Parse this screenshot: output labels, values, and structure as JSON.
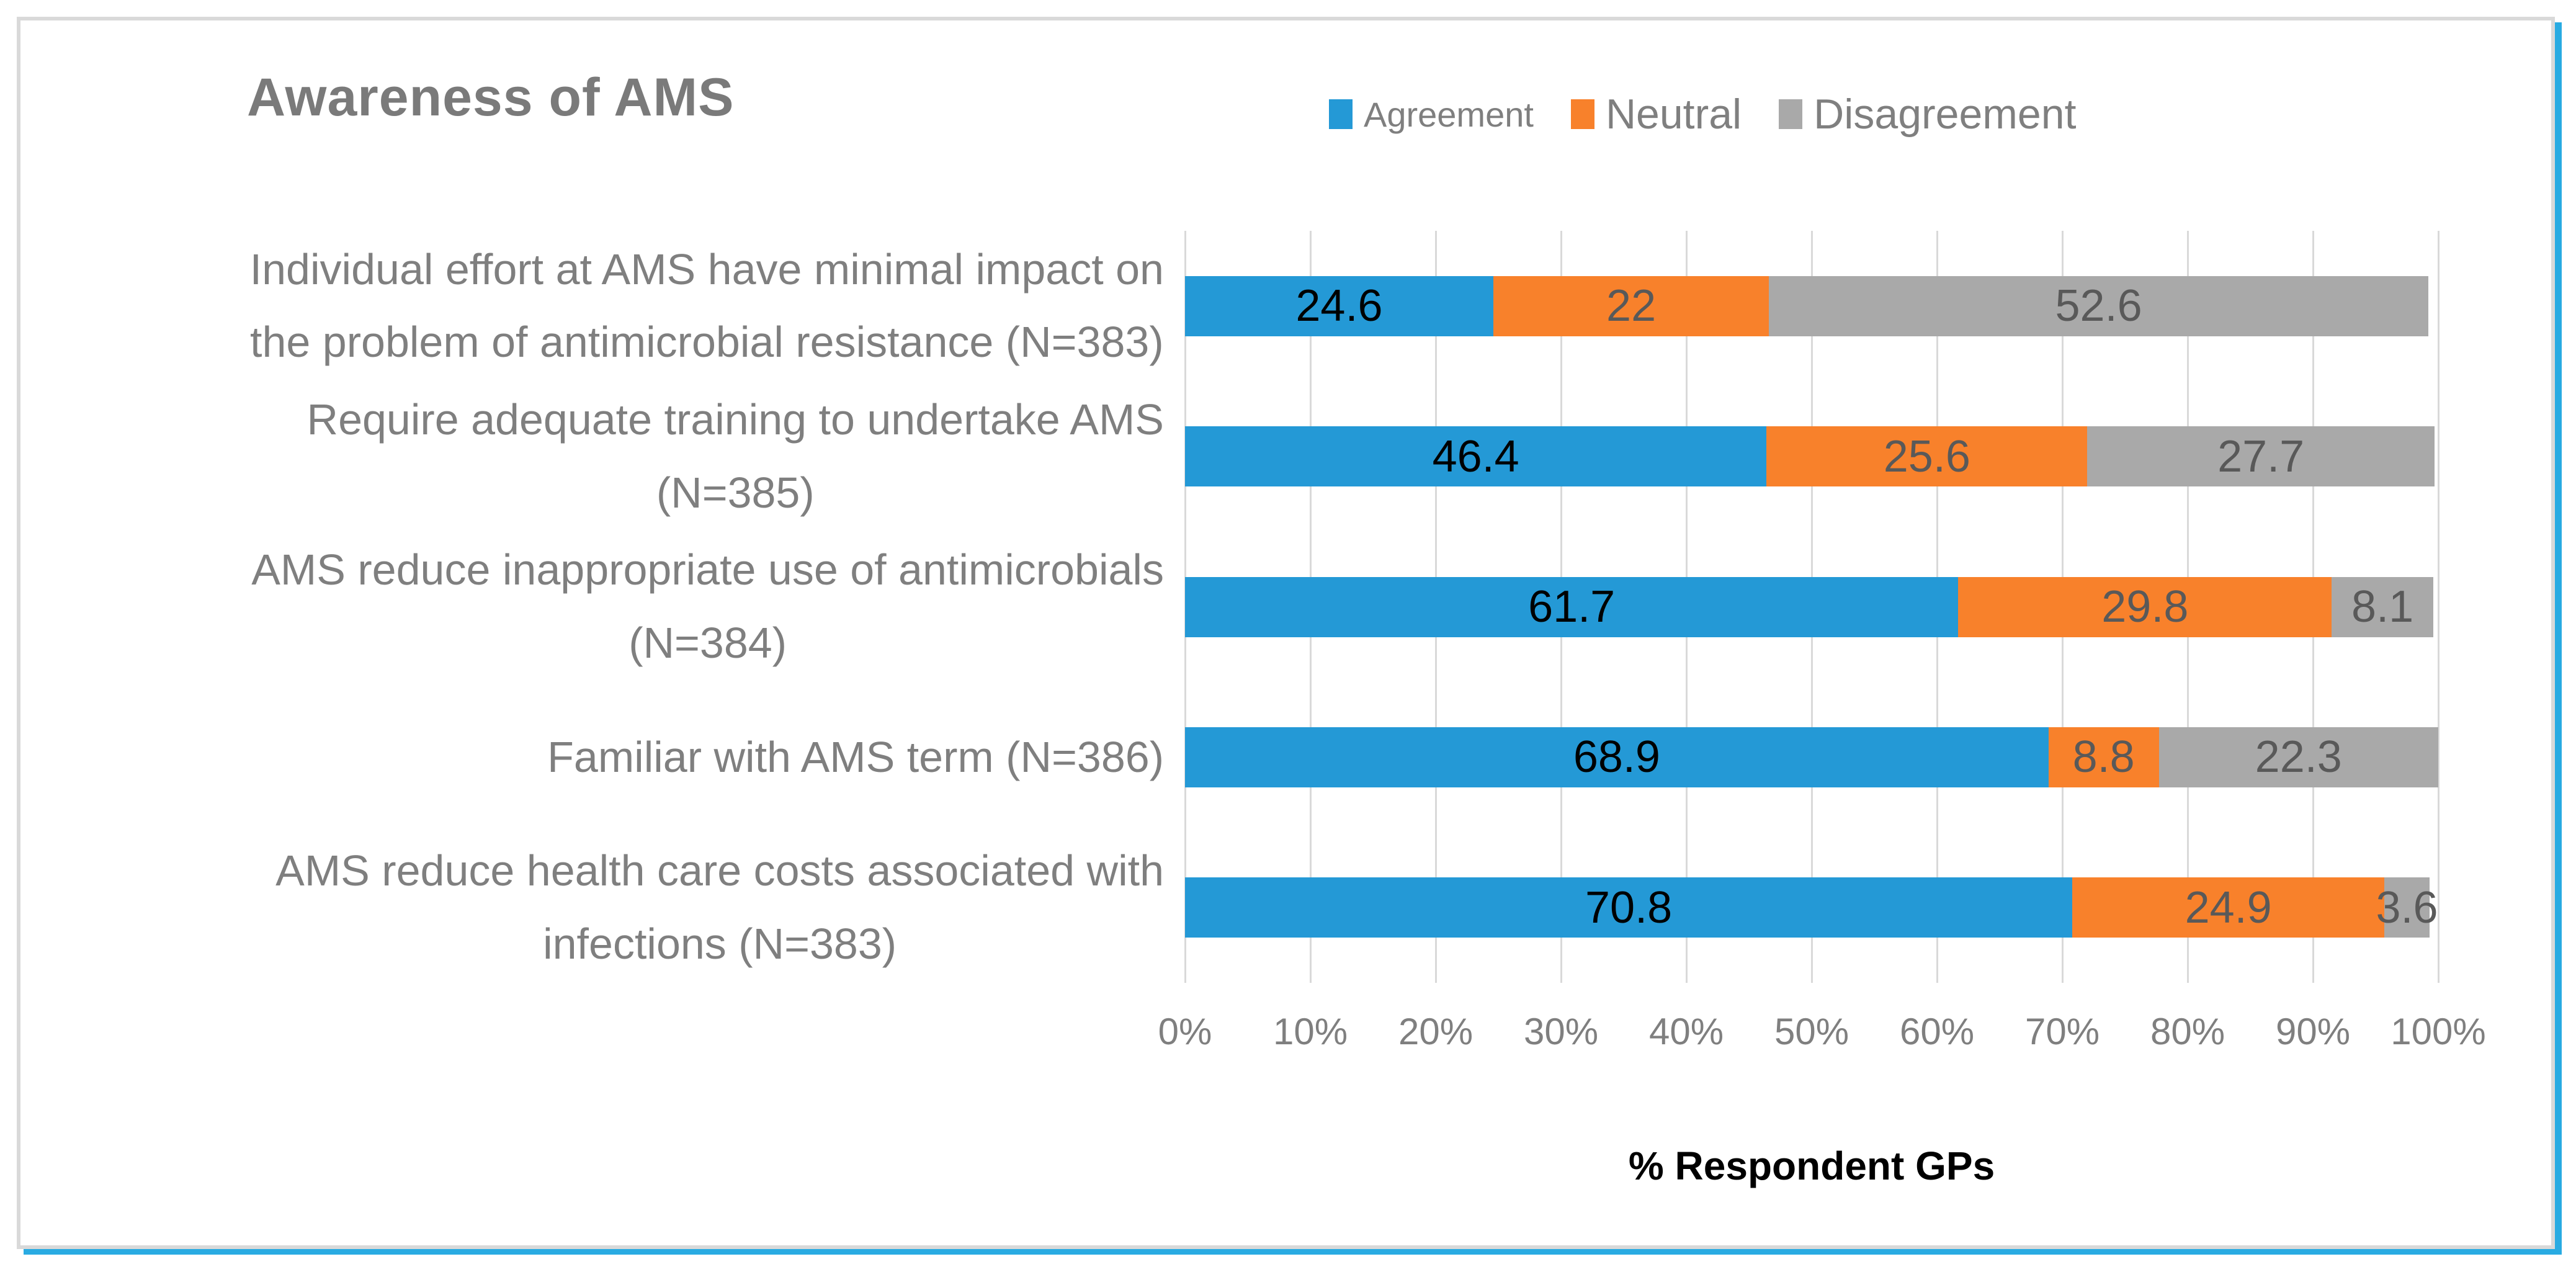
{
  "header": {
    "title": "Awareness of AMS"
  },
  "legend": {
    "items": [
      {
        "label": "Agreement"
      },
      {
        "label": "Neutral"
      },
      {
        "label": "Disagreement"
      }
    ]
  },
  "axis": {
    "x_title": "% Respondent GPs"
  },
  "colors": {
    "agreement": "#2499D6",
    "neutral": "#F8812B",
    "disagreement": "#A9A9A9",
    "frame_border": "#D9D9D9",
    "accent_shadow": "#29ABE2",
    "gridline": "#D9D9D9",
    "category_text": "#7F7F7F",
    "tick_text": "#7F7F7F",
    "title_text": "#7A7A7A",
    "value_label_on_agreement": "#000000",
    "value_label_on_other": "#595959"
  },
  "chart_data": {
    "type": "bar",
    "orientation": "horizontal_stacked",
    "title": "Awareness of AMS",
    "xlabel": "% Respondent GPs",
    "xlim": [
      0,
      100
    ],
    "x_tick_labels": [
      "0%",
      "10%",
      "20%",
      "30%",
      "40%",
      "50%",
      "60%",
      "70%",
      "80%",
      "90%",
      "100%"
    ],
    "grid": true,
    "legend_position": "top-right",
    "categories": [
      {
        "lines": [
          "Individual effort at AMS have minimal impact on",
          "the problem of antimicrobial resistance (N=383)"
        ]
      },
      {
        "lines": [
          "Require adequate training to undertake AMS",
          "(N=385)"
        ]
      },
      {
        "lines": [
          "AMS reduce inappropriate use of antimicrobials",
          "(N=384)"
        ]
      },
      {
        "lines": [
          "Familiar with AMS term (N=386)"
        ]
      },
      {
        "lines": [
          "AMS reduce health care costs associated with",
          "infections (N=383)"
        ]
      }
    ],
    "series": [
      {
        "name": "Agreement",
        "color": "#2499D6",
        "label_color": "#000000",
        "values": [
          24.6,
          46.4,
          61.7,
          68.9,
          70.8
        ]
      },
      {
        "name": "Neutral",
        "color": "#F8812B",
        "label_color": "#595959",
        "values": [
          22,
          25.6,
          29.8,
          8.8,
          24.9
        ]
      },
      {
        "name": "Disagreement",
        "color": "#A9A9A9",
        "label_color": "#595959",
        "values": [
          52.6,
          27.7,
          8.1,
          22.3,
          3.6
        ]
      }
    ]
  }
}
